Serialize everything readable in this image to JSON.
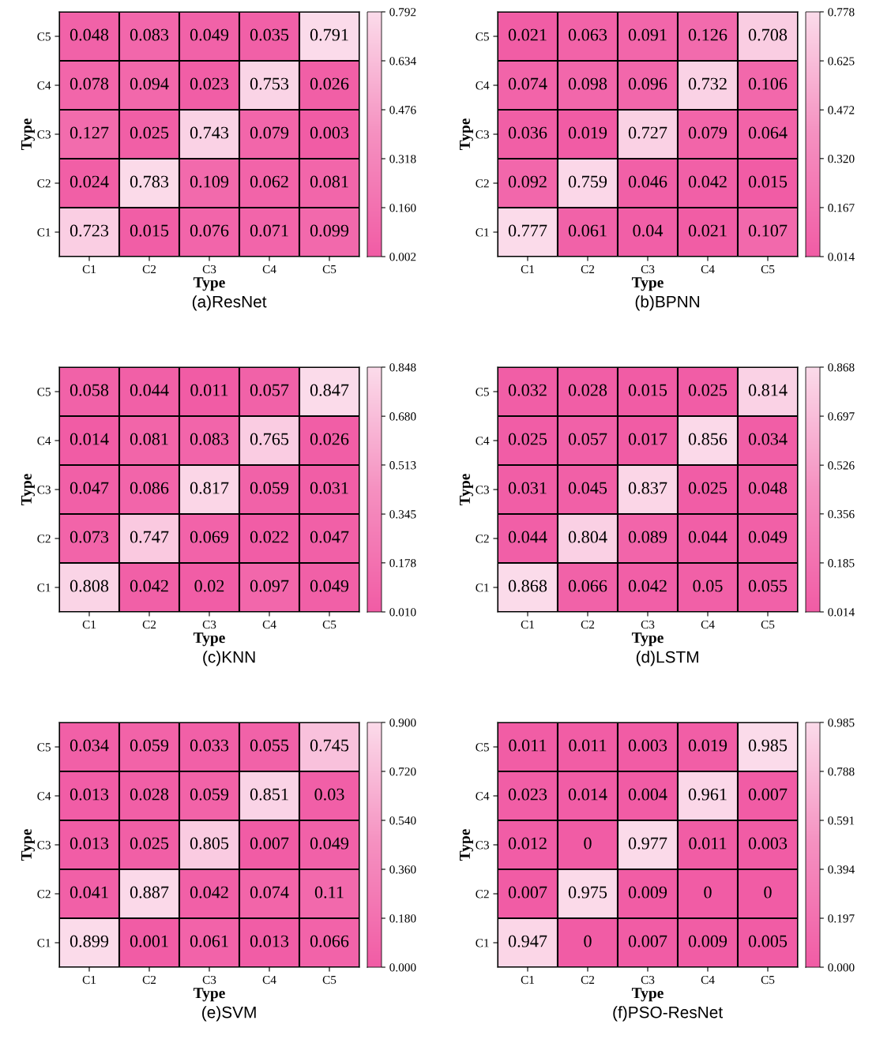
{
  "chart_data": [
    {
      "type": "heatmap",
      "title": "(a)ResNet",
      "xlabel": "Type",
      "ylabel": "Type",
      "categories": [
        "C1",
        "C2",
        "C3",
        "C4",
        "C5"
      ],
      "y_categories": [
        "C5",
        "C4",
        "C3",
        "C2",
        "C1"
      ],
      "data_labels": true,
      "cells": [
        [
          0.048,
          0.083,
          0.049,
          0.035,
          0.791
        ],
        [
          0.078,
          0.094,
          0.023,
          0.753,
          0.026
        ],
        [
          0.127,
          0.025,
          0.743,
          0.079,
          0.003
        ],
        [
          0.024,
          0.783,
          0.109,
          0.062,
          0.081
        ],
        [
          0.723,
          0.015,
          0.076,
          0.071,
          0.099
        ]
      ],
      "clim": [
        0.002,
        0.792
      ],
      "cticks": [
        {
          "value": 0.002,
          "label": "0.002"
        },
        {
          "value": 0.16,
          "label": "0.160"
        },
        {
          "value": 0.318,
          "label": "0.318"
        },
        {
          "value": 0.476,
          "label": "0.476"
        },
        {
          "value": 0.634,
          "label": "0.634"
        },
        {
          "value": 0.792,
          "label": "0.792"
        }
      ]
    },
    {
      "type": "heatmap",
      "title": "(b)BPNN",
      "xlabel": "Type",
      "ylabel": "Type",
      "categories": [
        "C1",
        "C2",
        "C3",
        "C4",
        "C5"
      ],
      "y_categories": [
        "C5",
        "C4",
        "C3",
        "C2",
        "C1"
      ],
      "data_labels": true,
      "cells": [
        [
          0.021,
          0.063,
          0.091,
          0.126,
          0.708
        ],
        [
          0.074,
          0.098,
          0.096,
          0.732,
          0.106
        ],
        [
          0.036,
          0.019,
          0.727,
          0.079,
          0.064
        ],
        [
          0.092,
          0.759,
          0.046,
          0.042,
          0.015
        ],
        [
          0.777,
          0.061,
          0.04,
          0.021,
          0.107
        ]
      ],
      "clim": [
        0.014,
        0.778
      ],
      "cticks": [
        {
          "value": 0.014,
          "label": "0.014"
        },
        {
          "value": 0.167,
          "label": "0.167"
        },
        {
          "value": 0.32,
          "label": "0.320"
        },
        {
          "value": 0.472,
          "label": "0.472"
        },
        {
          "value": 0.625,
          "label": "0.625"
        },
        {
          "value": 0.778,
          "label": "0.778"
        }
      ]
    },
    {
      "type": "heatmap",
      "title": "(c)KNN",
      "xlabel": "Type",
      "ylabel": "Type",
      "categories": [
        "C1",
        "C2",
        "C3",
        "C4",
        "C5"
      ],
      "y_categories": [
        "C5",
        "C4",
        "C3",
        "C2",
        "C1"
      ],
      "data_labels": true,
      "cells": [
        [
          0.058,
          0.044,
          0.011,
          0.057,
          0.847
        ],
        [
          0.014,
          0.081,
          0.083,
          0.765,
          0.026
        ],
        [
          0.047,
          0.086,
          0.817,
          0.059,
          0.031
        ],
        [
          0.073,
          0.747,
          0.069,
          0.022,
          0.047
        ],
        [
          0.808,
          0.042,
          0.02,
          0.097,
          0.049
        ]
      ],
      "clim": [
        0.01,
        0.848
      ],
      "cticks": [
        {
          "value": 0.01,
          "label": "0.010"
        },
        {
          "value": 0.178,
          "label": "0.178"
        },
        {
          "value": 0.345,
          "label": "0.345"
        },
        {
          "value": 0.513,
          "label": "0.513"
        },
        {
          "value": 0.68,
          "label": "0.680"
        },
        {
          "value": 0.848,
          "label": "0.848"
        }
      ]
    },
    {
      "type": "heatmap",
      "title": "(d)LSTM",
      "xlabel": "Type",
      "ylabel": "Type",
      "categories": [
        "C1",
        "C2",
        "C3",
        "C4",
        "C5"
      ],
      "y_categories": [
        "C5",
        "C4",
        "C3",
        "C2",
        "C1"
      ],
      "data_labels": true,
      "cells": [
        [
          0.032,
          0.028,
          0.015,
          0.025,
          0.814
        ],
        [
          0.025,
          0.057,
          0.017,
          0.856,
          0.034
        ],
        [
          0.031,
          0.045,
          0.837,
          0.025,
          0.048
        ],
        [
          0.044,
          0.804,
          0.089,
          0.044,
          0.049
        ],
        [
          0.868,
          0.066,
          0.042,
          0.05,
          0.055
        ]
      ],
      "clim": [
        0.014,
        0.868
      ],
      "cticks": [
        {
          "value": 0.014,
          "label": "0.014"
        },
        {
          "value": 0.185,
          "label": "0.185"
        },
        {
          "value": 0.356,
          "label": "0.356"
        },
        {
          "value": 0.526,
          "label": "0.526"
        },
        {
          "value": 0.697,
          "label": "0.697"
        },
        {
          "value": 0.868,
          "label": "0.868"
        }
      ]
    },
    {
      "type": "heatmap",
      "title": "(e)SVM",
      "xlabel": "Type",
      "ylabel": "Type",
      "categories": [
        "C1",
        "C2",
        "C3",
        "C4",
        "C5"
      ],
      "y_categories": [
        "C5",
        "C4",
        "C3",
        "C2",
        "C1"
      ],
      "data_labels": true,
      "cells": [
        [
          0.034,
          0.059,
          0.033,
          0.055,
          0.745
        ],
        [
          0.013,
          0.028,
          0.059,
          0.851,
          0.03
        ],
        [
          0.013,
          0.025,
          0.805,
          0.007,
          0.049
        ],
        [
          0.041,
          0.887,
          0.042,
          0.074,
          0.11
        ],
        [
          0.899,
          0.001,
          0.061,
          0.013,
          0.066
        ]
      ],
      "clim": [
        0,
        0.9
      ],
      "cticks": [
        {
          "value": 0,
          "label": "0.000"
        },
        {
          "value": 0.18,
          "label": "0.180"
        },
        {
          "value": 0.36,
          "label": "0.360"
        },
        {
          "value": 0.54,
          "label": "0.540"
        },
        {
          "value": 0.72,
          "label": "0.720"
        },
        {
          "value": 0.9,
          "label": "0.900"
        }
      ]
    },
    {
      "type": "heatmap",
      "title": "(f)PSO-ResNet",
      "xlabel": "Type",
      "ylabel": "Type",
      "categories": [
        "C1",
        "C2",
        "C3",
        "C4",
        "C5"
      ],
      "y_categories": [
        "C5",
        "C4",
        "C3",
        "C2",
        "C1"
      ],
      "data_labels": true,
      "cells": [
        [
          0.011,
          0.011,
          0.003,
          0.019,
          0.985
        ],
        [
          0.023,
          0.014,
          0.004,
          0.961,
          0.007
        ],
        [
          0.012,
          0,
          0.977,
          0.011,
          0.003
        ],
        [
          0.007,
          0.975,
          0.009,
          0,
          0
        ],
        [
          0.947,
          0,
          0.007,
          0.009,
          0.005
        ]
      ],
      "clim": [
        0,
        0.985
      ],
      "cticks": [
        {
          "value": 0,
          "label": "0.000"
        },
        {
          "value": 0.197,
          "label": "0.197"
        },
        {
          "value": 0.394,
          "label": "0.394"
        },
        {
          "value": 0.591,
          "label": "0.591"
        },
        {
          "value": 0.788,
          "label": "0.788"
        },
        {
          "value": 0.985,
          "label": "0.985"
        }
      ]
    }
  ]
}
